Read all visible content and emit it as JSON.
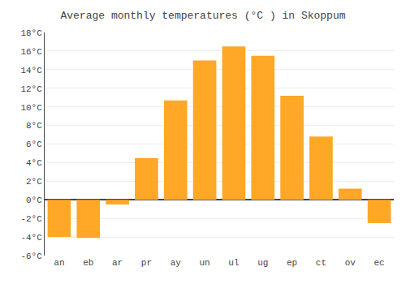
{
  "chart_data": {
    "type": "bar",
    "title": "Average monthly temperatures (°C ) in Skoppum",
    "categories": [
      "an",
      "eb",
      "ar",
      "pr",
      "ay",
      "un",
      "ul",
      "ug",
      "ep",
      "ct",
      "ov",
      "ec"
    ],
    "values": [
      -4.0,
      -4.1,
      -0.5,
      4.5,
      10.7,
      15.0,
      16.5,
      15.5,
      11.2,
      6.8,
      1.2,
      -2.5
    ],
    "color": "#FFA726",
    "ylim": [
      -6,
      18
    ],
    "yticks": [
      {
        "value": -6,
        "label": "-6°C"
      },
      {
        "value": -4,
        "label": "-4°C"
      },
      {
        "value": -2,
        "label": "-2°C"
      },
      {
        "value": 0,
        "label": "0°C"
      },
      {
        "value": 2,
        "label": "2°C"
      },
      {
        "value": 4,
        "label": "4°C"
      },
      {
        "value": 6,
        "label": "6°C"
      },
      {
        "value": 8,
        "label": "8°C"
      },
      {
        "value": 10,
        "label": "10°C"
      },
      {
        "value": 12,
        "label": "12°C"
      },
      {
        "value": 14,
        "label": "14°C"
      },
      {
        "value": 16,
        "label": "16°C"
      },
      {
        "value": 18,
        "label": "18°C"
      }
    ],
    "grid": true
  }
}
